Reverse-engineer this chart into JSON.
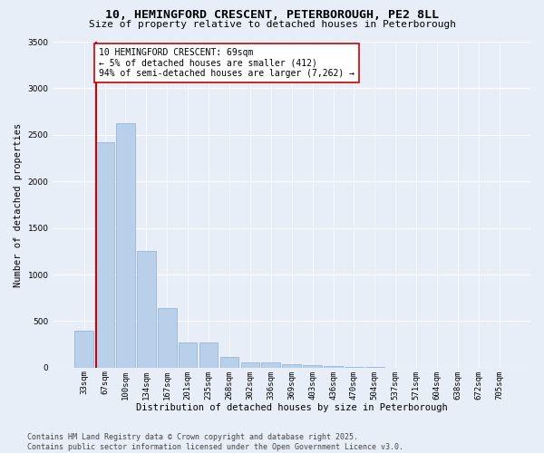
{
  "title": "10, HEMINGFORD CRESCENT, PETERBOROUGH, PE2 8LL",
  "subtitle": "Size of property relative to detached houses in Peterborough",
  "xlabel": "Distribution of detached houses by size in Peterborough",
  "ylabel": "Number of detached properties",
  "categories": [
    "33sqm",
    "67sqm",
    "100sqm",
    "134sqm",
    "167sqm",
    "201sqm",
    "235sqm",
    "268sqm",
    "302sqm",
    "336sqm",
    "369sqm",
    "403sqm",
    "436sqm",
    "470sqm",
    "504sqm",
    "537sqm",
    "571sqm",
    "604sqm",
    "638sqm",
    "672sqm",
    "705sqm"
  ],
  "values": [
    400,
    2420,
    2620,
    1250,
    640,
    270,
    270,
    110,
    55,
    55,
    40,
    30,
    20,
    10,
    5,
    0,
    0,
    0,
    0,
    0,
    0
  ],
  "bar_color": "#b8d0ea",
  "bar_edge_color": "#8ab0d8",
  "vline_color": "#cc0000",
  "annotation_text": "10 HEMINGFORD CRESCENT: 69sqm\n← 5% of detached houses are smaller (412)\n94% of semi-detached houses are larger (7,262) →",
  "annotation_box_color": "#ffffff",
  "annotation_box_edge": "#cc0000",
  "ylim": [
    0,
    3500
  ],
  "yticks": [
    0,
    500,
    1000,
    1500,
    2000,
    2500,
    3000,
    3500
  ],
  "background_color": "#e8eef8",
  "footer_line1": "Contains HM Land Registry data © Crown copyright and database right 2025.",
  "footer_line2": "Contains public sector information licensed under the Open Government Licence v3.0.",
  "title_fontsize": 9.5,
  "subtitle_fontsize": 8,
  "axis_label_fontsize": 7.5,
  "tick_fontsize": 6.5,
  "annotation_fontsize": 7,
  "footer_fontsize": 6
}
